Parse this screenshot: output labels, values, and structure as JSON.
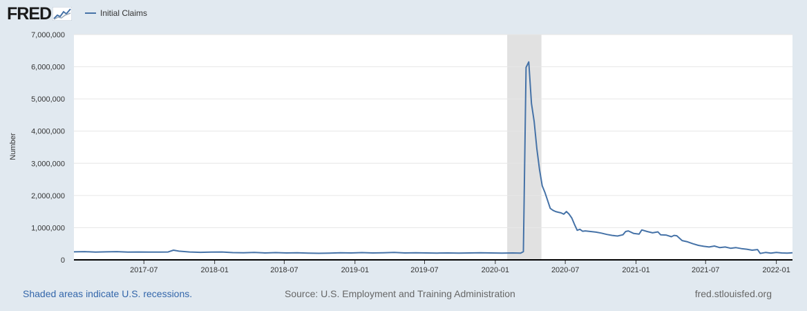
{
  "header": {
    "logo_text": "FRED",
    "legend_label": "Initial Claims"
  },
  "footer": {
    "recession_note": "Shaded areas indicate U.S. recessions.",
    "source": "Source: U.S. Employment and Training Administration",
    "site": "fred.stlouisfed.org"
  },
  "colors": {
    "series": "#4572a7",
    "recession": "#e1e1e1",
    "background": "#e1e9f0"
  },
  "chart_data": {
    "type": "line",
    "title": "",
    "xlabel": "",
    "ylabel": "Number",
    "ylim": [
      0,
      7000000
    ],
    "xlim": [
      "2016-12-31",
      "2022-02-12"
    ],
    "y_ticks": [
      0,
      1000000,
      2000000,
      3000000,
      4000000,
      5000000,
      6000000,
      7000000
    ],
    "y_tick_labels": [
      "0",
      "1,000,000",
      "2,000,000",
      "3,000,000",
      "4,000,000",
      "5,000,000",
      "6,000,000",
      "7,000,000"
    ],
    "x_tick_labels": [
      "2017-07",
      "2018-01",
      "2018-07",
      "2019-01",
      "2019-07",
      "2020-01",
      "2020-07",
      "2021-01",
      "2021-07",
      "2022-01"
    ],
    "x_tick_dates": [
      "2017-07-01",
      "2018-01-01",
      "2018-07-01",
      "2019-01-01",
      "2019-07-01",
      "2020-01-01",
      "2020-07-01",
      "2021-01-01",
      "2021-07-01",
      "2022-01-01"
    ],
    "recessions": [
      {
        "start": "2020-02-01",
        "end": "2020-04-30"
      }
    ],
    "grid": true,
    "legend": "top-left",
    "series": [
      {
        "name": "Initial Claims",
        "points": [
          [
            "2016-12-31",
            250000
          ],
          [
            "2017-01-28",
            255000
          ],
          [
            "2017-02-25",
            240000
          ],
          [
            "2017-03-25",
            250000
          ],
          [
            "2017-04-22",
            255000
          ],
          [
            "2017-05-20",
            240000
          ],
          [
            "2017-06-17",
            245000
          ],
          [
            "2017-07-15",
            240000
          ],
          [
            "2017-08-12",
            240000
          ],
          [
            "2017-09-02",
            245000
          ],
          [
            "2017-09-16",
            300000
          ],
          [
            "2017-09-30",
            270000
          ],
          [
            "2017-10-28",
            245000
          ],
          [
            "2017-11-25",
            235000
          ],
          [
            "2017-12-23",
            240000
          ],
          [
            "2018-01-20",
            245000
          ],
          [
            "2018-02-17",
            225000
          ],
          [
            "2018-03-17",
            220000
          ],
          [
            "2018-04-14",
            230000
          ],
          [
            "2018-05-12",
            215000
          ],
          [
            "2018-06-09",
            225000
          ],
          [
            "2018-07-07",
            215000
          ],
          [
            "2018-08-04",
            220000
          ],
          [
            "2018-09-01",
            210000
          ],
          [
            "2018-09-29",
            205000
          ],
          [
            "2018-10-27",
            210000
          ],
          [
            "2018-11-24",
            220000
          ],
          [
            "2018-12-22",
            215000
          ],
          [
            "2019-01-19",
            225000
          ],
          [
            "2019-02-16",
            215000
          ],
          [
            "2019-03-16",
            220000
          ],
          [
            "2019-04-13",
            230000
          ],
          [
            "2019-05-11",
            215000
          ],
          [
            "2019-06-08",
            220000
          ],
          [
            "2019-07-06",
            215000
          ],
          [
            "2019-08-03",
            210000
          ],
          [
            "2019-08-31",
            215000
          ],
          [
            "2019-09-28",
            210000
          ],
          [
            "2019-10-26",
            215000
          ],
          [
            "2019-11-23",
            220000
          ],
          [
            "2019-12-21",
            215000
          ],
          [
            "2020-01-18",
            210000
          ],
          [
            "2020-02-15",
            215000
          ],
          [
            "2020-03-07",
            211000
          ],
          [
            "2020-03-14",
            256000
          ],
          [
            "2020-03-21",
            5980000
          ],
          [
            "2020-03-28",
            6150000
          ],
          [
            "2020-04-04",
            4860000
          ],
          [
            "2020-04-11",
            4300000
          ],
          [
            "2020-04-18",
            3450000
          ],
          [
            "2020-04-25",
            2800000
          ],
          [
            "2020-05-02",
            2300000
          ],
          [
            "2020-05-09",
            2100000
          ],
          [
            "2020-05-16",
            1850000
          ],
          [
            "2020-05-23",
            1600000
          ],
          [
            "2020-05-30",
            1540000
          ],
          [
            "2020-06-06",
            1500000
          ],
          [
            "2020-06-13",
            1480000
          ],
          [
            "2020-06-20",
            1460000
          ],
          [
            "2020-06-27",
            1420000
          ],
          [
            "2020-07-04",
            1500000
          ],
          [
            "2020-07-11",
            1420000
          ],
          [
            "2020-07-18",
            1300000
          ],
          [
            "2020-07-25",
            1100000
          ],
          [
            "2020-08-01",
            920000
          ],
          [
            "2020-08-08",
            950000
          ],
          [
            "2020-08-15",
            890000
          ],
          [
            "2020-08-22",
            900000
          ],
          [
            "2020-09-05",
            880000
          ],
          [
            "2020-09-19",
            860000
          ],
          [
            "2020-10-03",
            830000
          ],
          [
            "2020-10-17",
            790000
          ],
          [
            "2020-10-31",
            760000
          ],
          [
            "2020-11-14",
            740000
          ],
          [
            "2020-11-28",
            780000
          ],
          [
            "2020-12-05",
            880000
          ],
          [
            "2020-12-12",
            900000
          ],
          [
            "2020-12-26",
            820000
          ],
          [
            "2021-01-09",
            800000
          ],
          [
            "2021-01-16",
            930000
          ],
          [
            "2021-01-30",
            880000
          ],
          [
            "2021-02-13",
            840000
          ],
          [
            "2021-02-27",
            870000
          ],
          [
            "2021-03-06",
            780000
          ],
          [
            "2021-03-20",
            770000
          ],
          [
            "2021-04-03",
            720000
          ],
          [
            "2021-04-10",
            760000
          ],
          [
            "2021-04-17",
            750000
          ],
          [
            "2021-05-01",
            600000
          ],
          [
            "2021-05-15",
            560000
          ],
          [
            "2021-05-29",
            500000
          ],
          [
            "2021-06-12",
            450000
          ],
          [
            "2021-06-26",
            420000
          ],
          [
            "2021-07-10",
            400000
          ],
          [
            "2021-07-24",
            430000
          ],
          [
            "2021-08-07",
            380000
          ],
          [
            "2021-08-21",
            400000
          ],
          [
            "2021-09-04",
            360000
          ],
          [
            "2021-09-18",
            380000
          ],
          [
            "2021-10-02",
            350000
          ],
          [
            "2021-10-16",
            330000
          ],
          [
            "2021-10-30",
            300000
          ],
          [
            "2021-11-13",
            320000
          ],
          [
            "2021-11-20",
            200000
          ],
          [
            "2021-12-04",
            230000
          ],
          [
            "2021-12-18",
            210000
          ],
          [
            "2022-01-01",
            230000
          ],
          [
            "2022-01-15",
            215000
          ],
          [
            "2022-01-29",
            210000
          ],
          [
            "2022-02-12",
            220000
          ]
        ]
      }
    ]
  }
}
